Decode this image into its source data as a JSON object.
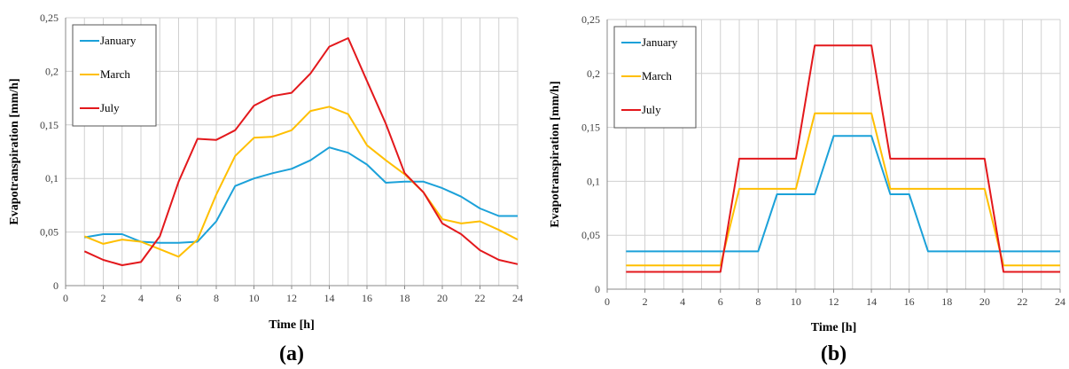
{
  "chart_data": [
    {
      "type": "line",
      "panel_label": "(a)",
      "xlabel": "Time [h]",
      "ylabel": "Evapotranspiration [mm/h]",
      "xlim": [
        0,
        24
      ],
      "ylim": [
        0,
        0.25
      ],
      "xticks": [
        "0",
        "2",
        "4",
        "6",
        "8",
        "10",
        "12",
        "14",
        "16",
        "18",
        "20",
        "22",
        "24"
      ],
      "yticks": [
        "0",
        "0,05",
        "0,1",
        "0,15",
        "0,2",
        "0,25"
      ],
      "grid": true,
      "legend_position": "top-left",
      "x": [
        1,
        2,
        3,
        4,
        5,
        6,
        7,
        8,
        9,
        10,
        11,
        12,
        13,
        14,
        15,
        16,
        17,
        18,
        19,
        20,
        21,
        22,
        23,
        24
      ],
      "series": [
        {
          "name": "January",
          "color": "#1BA1D9",
          "values": [
            0.045,
            0.048,
            0.048,
            0.041,
            0.04,
            0.04,
            0.041,
            0.06,
            0.093,
            0.1,
            0.105,
            0.109,
            0.117,
            0.129,
            0.124,
            0.113,
            0.096,
            0.097,
            0.097,
            0.091,
            0.083,
            0.072,
            0.065,
            0.065
          ]
        },
        {
          "name": "March",
          "color": "#FFBF00",
          "values": [
            0.046,
            0.039,
            0.043,
            0.041,
            0.034,
            0.027,
            0.043,
            0.085,
            0.121,
            0.138,
            0.139,
            0.145,
            0.163,
            0.167,
            0.16,
            0.131,
            0.117,
            0.104,
            0.087,
            0.062,
            0.058,
            0.06,
            0.052,
            0.043
          ]
        },
        {
          "name": "July",
          "color": "#E3181C",
          "values": [
            0.032,
            0.024,
            0.019,
            0.022,
            0.046,
            0.097,
            0.137,
            0.136,
            0.145,
            0.168,
            0.177,
            0.18,
            0.198,
            0.223,
            0.231,
            0.191,
            0.151,
            0.105,
            0.087,
            0.058,
            0.048,
            0.033,
            0.024,
            0.02
          ]
        }
      ]
    },
    {
      "type": "line",
      "panel_label": "(b)",
      "xlabel": "Time [h]",
      "ylabel": "Evapotranspiration [mm/h]",
      "xlim": [
        0,
        24
      ],
      "ylim": [
        0,
        0.25
      ],
      "xticks": [
        "0",
        "2",
        "4",
        "6",
        "8",
        "10",
        "12",
        "14",
        "16",
        "18",
        "20",
        "22",
        "24"
      ],
      "yticks": [
        "0",
        "0,05",
        "0,1",
        "0,15",
        "0,2",
        "0,25"
      ],
      "grid": true,
      "legend_position": "top-left",
      "x": [
        1,
        2,
        3,
        4,
        5,
        6,
        7,
        8,
        9,
        10,
        11,
        12,
        13,
        14,
        15,
        16,
        17,
        18,
        19,
        20,
        21,
        22,
        23,
        24
      ],
      "series": [
        {
          "name": "January",
          "color": "#1BA1D9",
          "values": [
            0.035,
            0.035,
            0.035,
            0.035,
            0.035,
            0.035,
            0.035,
            0.035,
            0.088,
            0.088,
            0.088,
            0.142,
            0.142,
            0.142,
            0.088,
            0.088,
            0.035,
            0.035,
            0.035,
            0.035,
            0.035,
            0.035,
            0.035,
            0.035
          ]
        },
        {
          "name": "March",
          "color": "#FFBF00",
          "values": [
            0.022,
            0.022,
            0.022,
            0.022,
            0.022,
            0.022,
            0.093,
            0.093,
            0.093,
            0.093,
            0.163,
            0.163,
            0.163,
            0.163,
            0.093,
            0.093,
            0.093,
            0.093,
            0.093,
            0.093,
            0.022,
            0.022,
            0.022,
            0.022
          ]
        },
        {
          "name": "July",
          "color": "#E3181C",
          "values": [
            0.016,
            0.016,
            0.016,
            0.016,
            0.016,
            0.016,
            0.121,
            0.121,
            0.121,
            0.121,
            0.226,
            0.226,
            0.226,
            0.226,
            0.121,
            0.121,
            0.121,
            0.121,
            0.121,
            0.121,
            0.016,
            0.016,
            0.016,
            0.016
          ]
        }
      ]
    }
  ]
}
